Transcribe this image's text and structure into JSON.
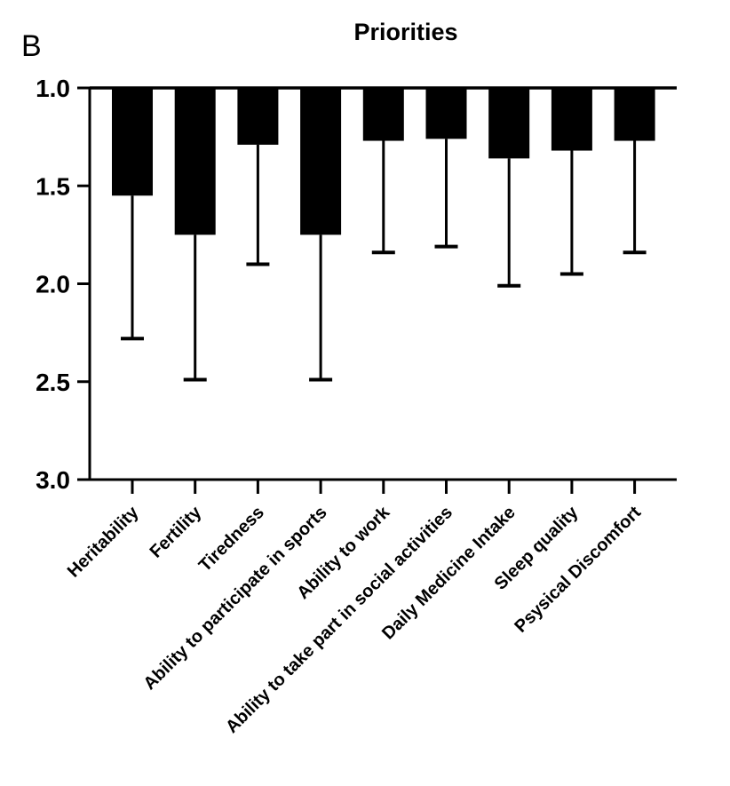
{
  "figure": {
    "panel_label": "B"
  },
  "chart_data": {
    "type": "bar",
    "title": "Priorities",
    "panel_label": "B",
    "xlabel": "",
    "ylabel": "",
    "y_axis_inverted": true,
    "baseline": 1.0,
    "ylim": [
      1.0,
      3.0
    ],
    "y_ticks": [
      "1.0",
      "1.5",
      "2.0",
      "2.5",
      "3.0"
    ],
    "grid": false,
    "legend": null,
    "bar_color": "#000000",
    "axis_color": "#000000",
    "background_color": "#ffffff",
    "error_bar_direction": "downward",
    "categories": [
      "Heritability",
      "Fertility",
      "Tiredness",
      "Ability to participate in sports",
      "Ability to work",
      "Ability to take part in social activities",
      "Daily Medicine Intake",
      "Sleep quality",
      "Psysical Discomfort"
    ],
    "values": [
      1.55,
      1.75,
      1.29,
      1.75,
      1.27,
      1.26,
      1.36,
      1.32,
      1.27
    ],
    "error_caps": [
      2.28,
      2.49,
      1.9,
      2.49,
      1.84,
      1.81,
      2.01,
      1.95,
      1.84
    ]
  }
}
